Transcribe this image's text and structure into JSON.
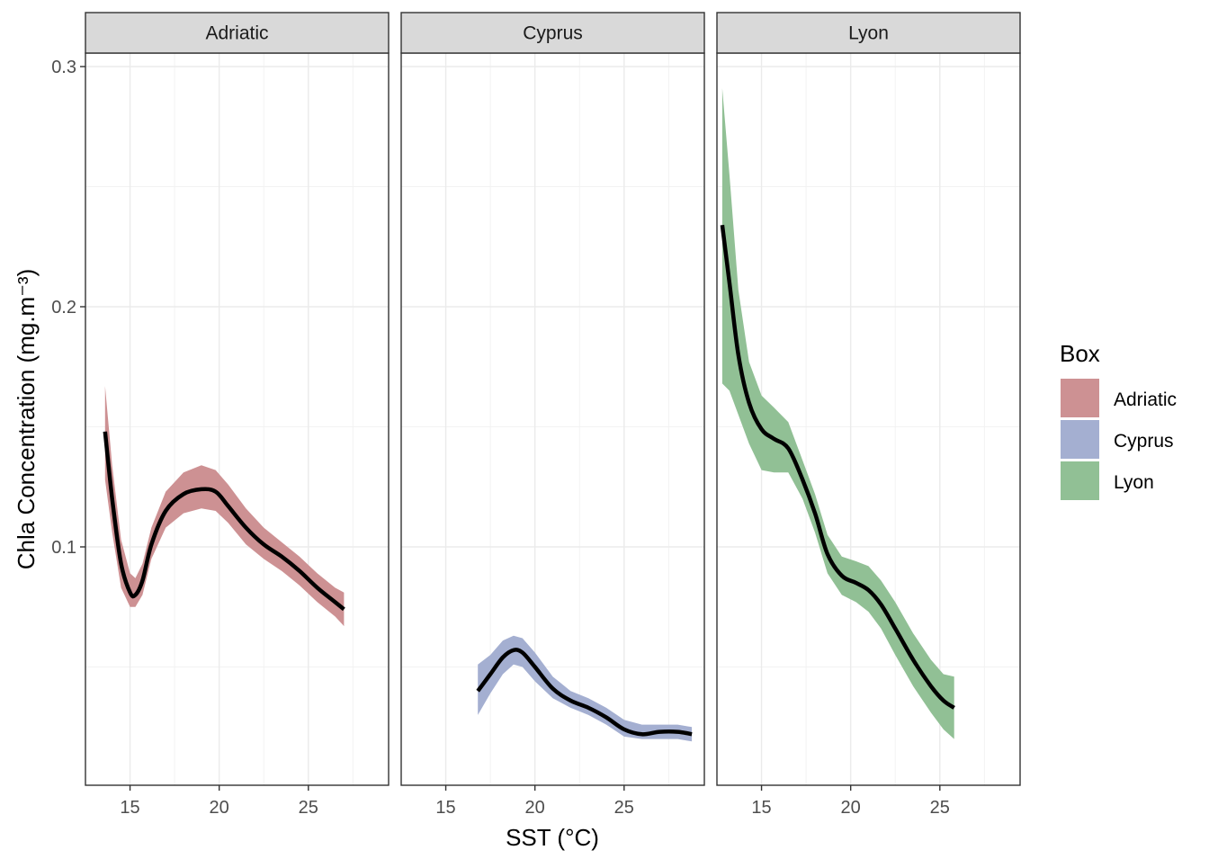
{
  "chart_data": {
    "type": "area",
    "subtype": "faceted smoothed line with confidence ribbons",
    "xlabel": "SST (°C)",
    "ylabel": "Chla Concentration (mg.m⁻³)",
    "ylim": [
      0.0,
      0.3
    ],
    "y_ticks": [
      0.1,
      0.2,
      0.3
    ],
    "y_tick_labels": [
      "0.1",
      "0.2",
      "0.3"
    ],
    "x_ticks": [
      15,
      20,
      25
    ],
    "x_tick_labels": [
      "15",
      "20",
      "25"
    ],
    "grid": true,
    "legend": {
      "title": "Box",
      "position": "right",
      "entries": [
        {
          "label": "Adriatic",
          "color": "#cd9193"
        },
        {
          "label": "Cyprus",
          "color": "#a4afd1"
        },
        {
          "label": "Lyon",
          "color": "#91c095"
        }
      ]
    },
    "line_color": "#000000",
    "panels": [
      {
        "name": "Adriatic",
        "color": "#cd9193",
        "xlim": [
          12.5,
          29.5
        ],
        "x": [
          13.6,
          14.0,
          14.5,
          15.0,
          15.3,
          15.7,
          16.2,
          17.0,
          18.0,
          19.0,
          19.8,
          20.5,
          21.5,
          22.5,
          23.5,
          24.5,
          25.5,
          26.5,
          27.0
        ],
        "y": [
          0.148,
          0.12,
          0.093,
          0.081,
          0.08,
          0.086,
          0.101,
          0.115,
          0.122,
          0.124,
          0.123,
          0.117,
          0.108,
          0.101,
          0.096,
          0.09,
          0.083,
          0.077,
          0.074
        ],
        "lower": [
          0.128,
          0.106,
          0.083,
          0.075,
          0.075,
          0.08,
          0.095,
          0.108,
          0.114,
          0.116,
          0.115,
          0.11,
          0.101,
          0.095,
          0.09,
          0.084,
          0.077,
          0.071,
          0.067
        ],
        "upper": [
          0.167,
          0.134,
          0.103,
          0.089,
          0.087,
          0.093,
          0.108,
          0.123,
          0.131,
          0.134,
          0.132,
          0.126,
          0.116,
          0.108,
          0.102,
          0.096,
          0.089,
          0.083,
          0.081
        ]
      },
      {
        "name": "Cyprus",
        "color": "#a4afd1",
        "xlim": [
          12.5,
          29.5
        ],
        "x": [
          16.8,
          17.5,
          18.2,
          18.8,
          19.3,
          20.0,
          21.0,
          22.0,
          23.0,
          24.0,
          25.0,
          26.0,
          27.0,
          28.0,
          28.8
        ],
        "y": [
          0.04,
          0.047,
          0.054,
          0.057,
          0.056,
          0.05,
          0.041,
          0.036,
          0.033,
          0.029,
          0.024,
          0.022,
          0.023,
          0.023,
          0.022
        ],
        "lower": [
          0.03,
          0.039,
          0.047,
          0.051,
          0.05,
          0.044,
          0.037,
          0.033,
          0.03,
          0.026,
          0.021,
          0.02,
          0.02,
          0.02,
          0.019
        ],
        "upper": [
          0.051,
          0.055,
          0.061,
          0.063,
          0.062,
          0.056,
          0.046,
          0.04,
          0.037,
          0.033,
          0.028,
          0.026,
          0.026,
          0.026,
          0.025
        ]
      },
      {
        "name": "Lyon",
        "color": "#91c095",
        "xlim": [
          12.5,
          29.5
        ],
        "x": [
          12.8,
          13.2,
          13.7,
          14.3,
          15.0,
          15.7,
          16.5,
          17.3,
          18.0,
          18.7,
          19.5,
          20.3,
          21.0,
          21.7,
          22.5,
          23.5,
          24.5,
          25.2,
          25.8
        ],
        "y": [
          0.234,
          0.21,
          0.18,
          0.16,
          0.149,
          0.145,
          0.141,
          0.128,
          0.114,
          0.097,
          0.088,
          0.085,
          0.082,
          0.076,
          0.066,
          0.053,
          0.042,
          0.036,
          0.033
        ],
        "lower": [
          0.168,
          0.165,
          0.155,
          0.143,
          0.132,
          0.131,
          0.131,
          0.12,
          0.106,
          0.089,
          0.08,
          0.077,
          0.073,
          0.066,
          0.055,
          0.042,
          0.031,
          0.024,
          0.02
        ],
        "upper": [
          0.291,
          0.255,
          0.207,
          0.177,
          0.163,
          0.158,
          0.152,
          0.136,
          0.122,
          0.105,
          0.096,
          0.094,
          0.092,
          0.086,
          0.077,
          0.064,
          0.053,
          0.047,
          0.046
        ]
      }
    ]
  }
}
